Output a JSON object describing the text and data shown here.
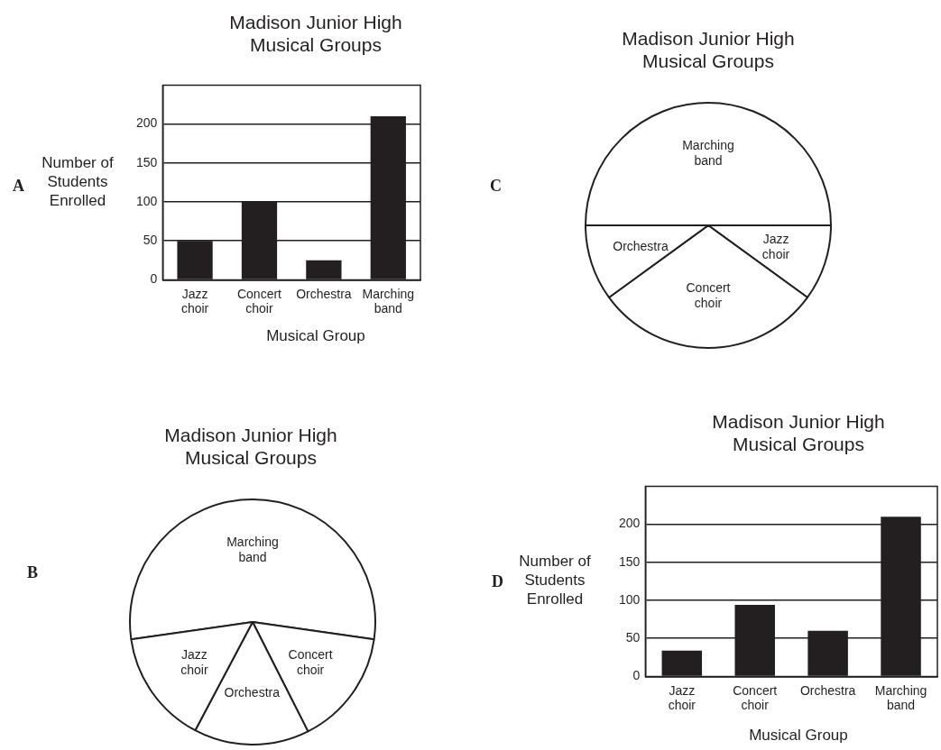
{
  "chart_data": [
    {
      "type": "bar",
      "title": "Madison Junior High Musical Groups",
      "xlabel": "Musical Group",
      "ylabel": "Number of Students Enrolled",
      "annotations": [
        "A"
      ],
      "categories": [
        "Jazz choir",
        "Concert choir",
        "Orchestra",
        "Marching band"
      ],
      "values": [
        50,
        100,
        25,
        210
      ],
      "color": "#231f20",
      "ylim": [
        0,
        250
      ],
      "yticks": [
        0,
        50,
        100,
        150,
        200
      ],
      "grid": "y",
      "legend": false
    },
    {
      "type": "pie",
      "title": "Madison Junior High Musical Groups",
      "annotations": [
        "C"
      ],
      "categories": [
        "Marching band",
        "Jazz choir",
        "Concert choir",
        "Orchestra"
      ],
      "values": [
        50,
        10,
        30,
        10
      ],
      "colors": [
        "#ffffff",
        "#ffffff",
        "#ffffff",
        "#ffffff"
      ],
      "legend": false
    },
    {
      "type": "pie",
      "title": "Madison Junior High Musical Groups",
      "annotations": [
        "B"
      ],
      "categories": [
        "Marching band",
        "Concert choir",
        "Orchestra",
        "Jazz choir"
      ],
      "values": [
        54.5,
        15.3,
        15.2,
        15
      ],
      "colors": [
        "#ffffff",
        "#ffffff",
        "#ffffff",
        "#ffffff"
      ],
      "legend": false
    },
    {
      "type": "bar",
      "title": "Madison Junior High Musical Groups",
      "xlabel": "Musical Group",
      "ylabel": "Number of Students Enrolled",
      "annotations": [
        "D"
      ],
      "categories": [
        "Jazz choir",
        "Concert choir",
        "Orchestra",
        "Marching band"
      ],
      "values": [
        34,
        94,
        60,
        210
      ],
      "color": "#231f20",
      "ylim": [
        0,
        250
      ],
      "yticks": [
        0,
        50,
        100,
        150,
        200
      ],
      "grid": "y",
      "legend": false
    }
  ]
}
